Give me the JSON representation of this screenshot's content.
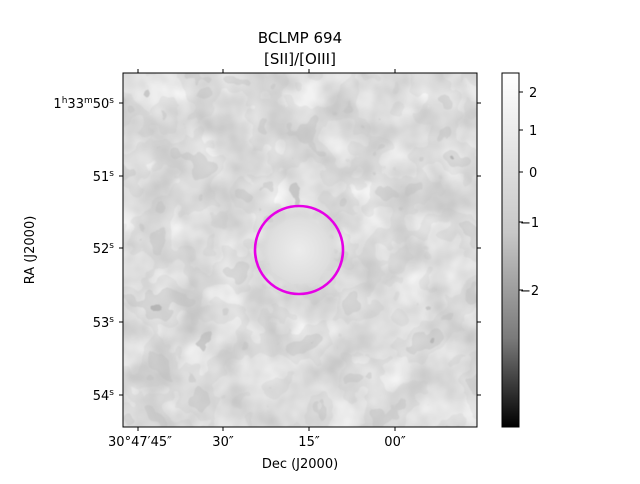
{
  "figure": {
    "title_line1": "BCLMP 694",
    "title_line2": "[SII]/[OIII]",
    "xlabel": "Dec (J2000)",
    "ylabel": "RA (J2000)",
    "x_ticks": [
      "30°47′45″",
      "30″",
      "15″",
      "00″"
    ],
    "y_ticks": [
      {
        "h": "1",
        "m": "33",
        "s": "50"
      },
      {
        "s": "51"
      },
      {
        "s": "52"
      },
      {
        "s": "53"
      },
      {
        "s": "54"
      }
    ],
    "colorbar": {
      "ticks": [
        "2",
        "1",
        "0",
        "−1",
        "−2"
      ],
      "colormap": "gray"
    },
    "aperture_color": "#e600e6"
  }
}
